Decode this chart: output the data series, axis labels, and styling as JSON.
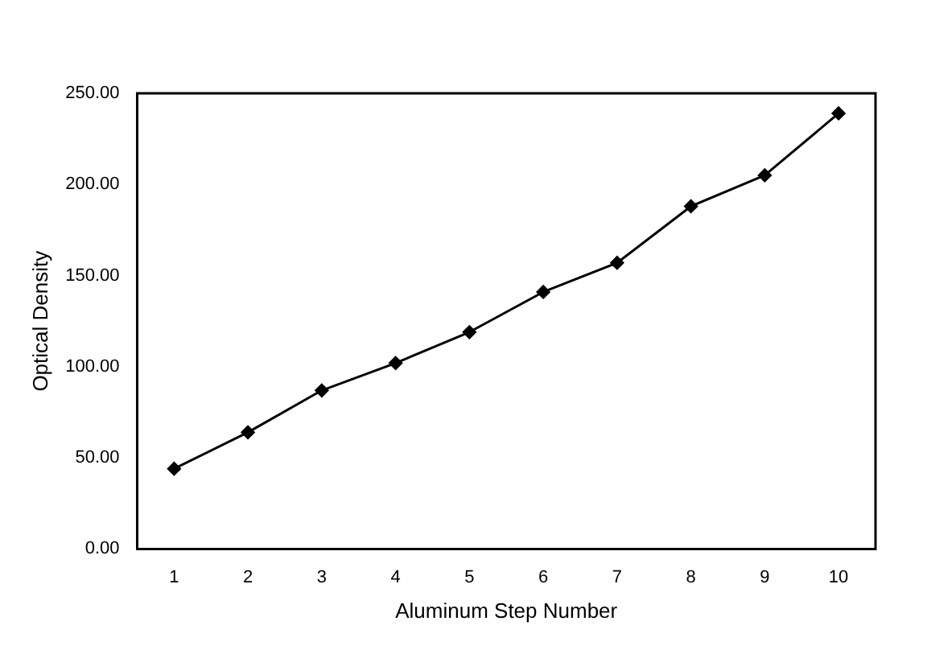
{
  "chart_data": {
    "type": "line",
    "xlabel": "Aluminum Step Number",
    "ylabel": "Optical Density",
    "categories": [
      "1",
      "2",
      "3",
      "4",
      "5",
      "6",
      "7",
      "8",
      "9",
      "10"
    ],
    "series": [
      {
        "color": "#000000",
        "values": [
          44,
          64,
          87,
          102,
          119,
          141,
          157,
          188,
          205,
          239
        ]
      }
    ],
    "ylim": [
      0,
      250
    ],
    "yticks": [
      {
        "value": 0,
        "label": "0.00"
      },
      {
        "value": 50,
        "label": "50.00"
      },
      {
        "value": 100,
        "label": "100.00"
      },
      {
        "value": 150,
        "label": "150.00"
      },
      {
        "value": 200,
        "label": "200.00"
      },
      {
        "value": 250,
        "label": "250.00"
      }
    ],
    "grid": false,
    "legend": false,
    "marker": "diamond",
    "line_style": "solid"
  }
}
